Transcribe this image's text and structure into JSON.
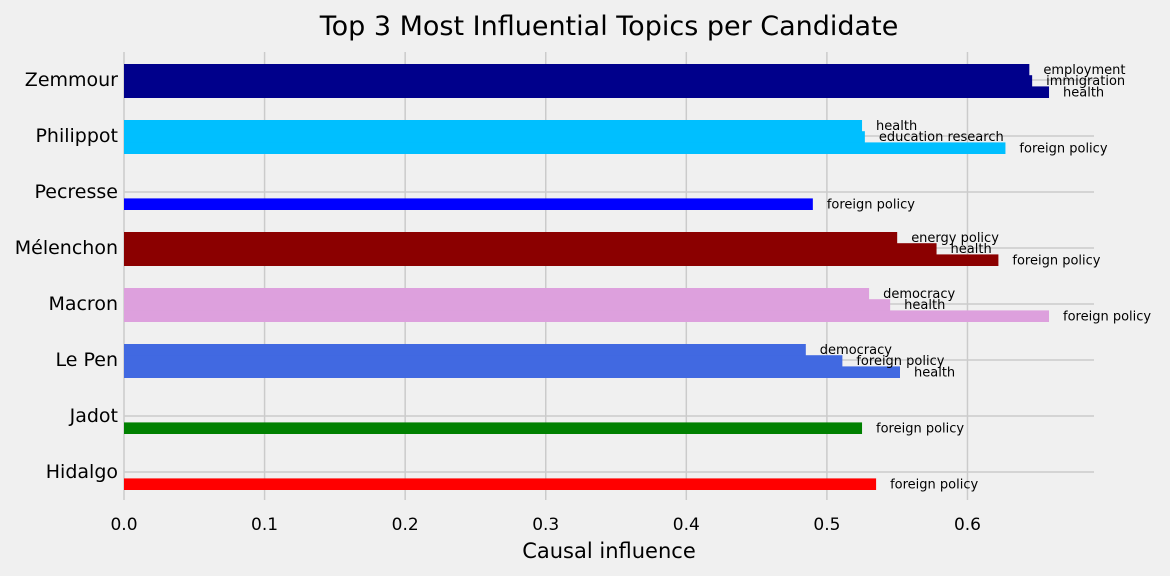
{
  "chart_data": {
    "type": "bar",
    "orientation": "horizontal",
    "title": "Top 3 Most Influential Topics per Candidate",
    "xlabel": "Causal influence",
    "ylabel": "",
    "xlim": [
      0,
      0.69
    ],
    "x_ticks": [
      0.0,
      0.1,
      0.2,
      0.3,
      0.4,
      0.5,
      0.6
    ],
    "x_tick_labels": [
      "0.0",
      "0.1",
      "0.2",
      "0.3",
      "0.4",
      "0.5",
      "0.6"
    ],
    "grid": true,
    "candidates": [
      {
        "name": "Zemmour",
        "color": "#00008b",
        "topics": [
          {
            "label": "employment",
            "value": 0.644
          },
          {
            "label": "immigration",
            "value": 0.646
          },
          {
            "label": "health",
            "value": 0.658
          }
        ]
      },
      {
        "name": "Philippot",
        "color": "#00bfff",
        "topics": [
          {
            "label": "health",
            "value": 0.525
          },
          {
            "label": "education research",
            "value": 0.527
          },
          {
            "label": "foreign policy",
            "value": 0.627
          }
        ]
      },
      {
        "name": "Pecresse",
        "color": "#0000ff",
        "topics": [
          {
            "label": "foreign policy",
            "value": 0.49
          }
        ]
      },
      {
        "name": "Mélenchon",
        "color": "#8b0000",
        "topics": [
          {
            "label": "energy policy",
            "value": 0.55
          },
          {
            "label": "health",
            "value": 0.578
          },
          {
            "label": "foreign policy",
            "value": 0.622
          }
        ]
      },
      {
        "name": "Macron",
        "color": "#dda0dd",
        "topics": [
          {
            "label": "democracy",
            "value": 0.53
          },
          {
            "label": "health",
            "value": 0.545
          },
          {
            "label": "foreign policy",
            "value": 0.658
          }
        ]
      },
      {
        "name": "Le Pen",
        "color": "#4169e1",
        "topics": [
          {
            "label": "democracy",
            "value": 0.485
          },
          {
            "label": "foreign policy",
            "value": 0.511
          },
          {
            "label": "health",
            "value": 0.552
          }
        ]
      },
      {
        "name": "Jadot",
        "color": "#008000",
        "topics": [
          {
            "label": "foreign policy",
            "value": 0.525
          }
        ]
      },
      {
        "name": "Hidalgo",
        "color": "#ff0000",
        "topics": [
          {
            "label": "foreign policy",
            "value": 0.535
          }
        ]
      }
    ]
  }
}
